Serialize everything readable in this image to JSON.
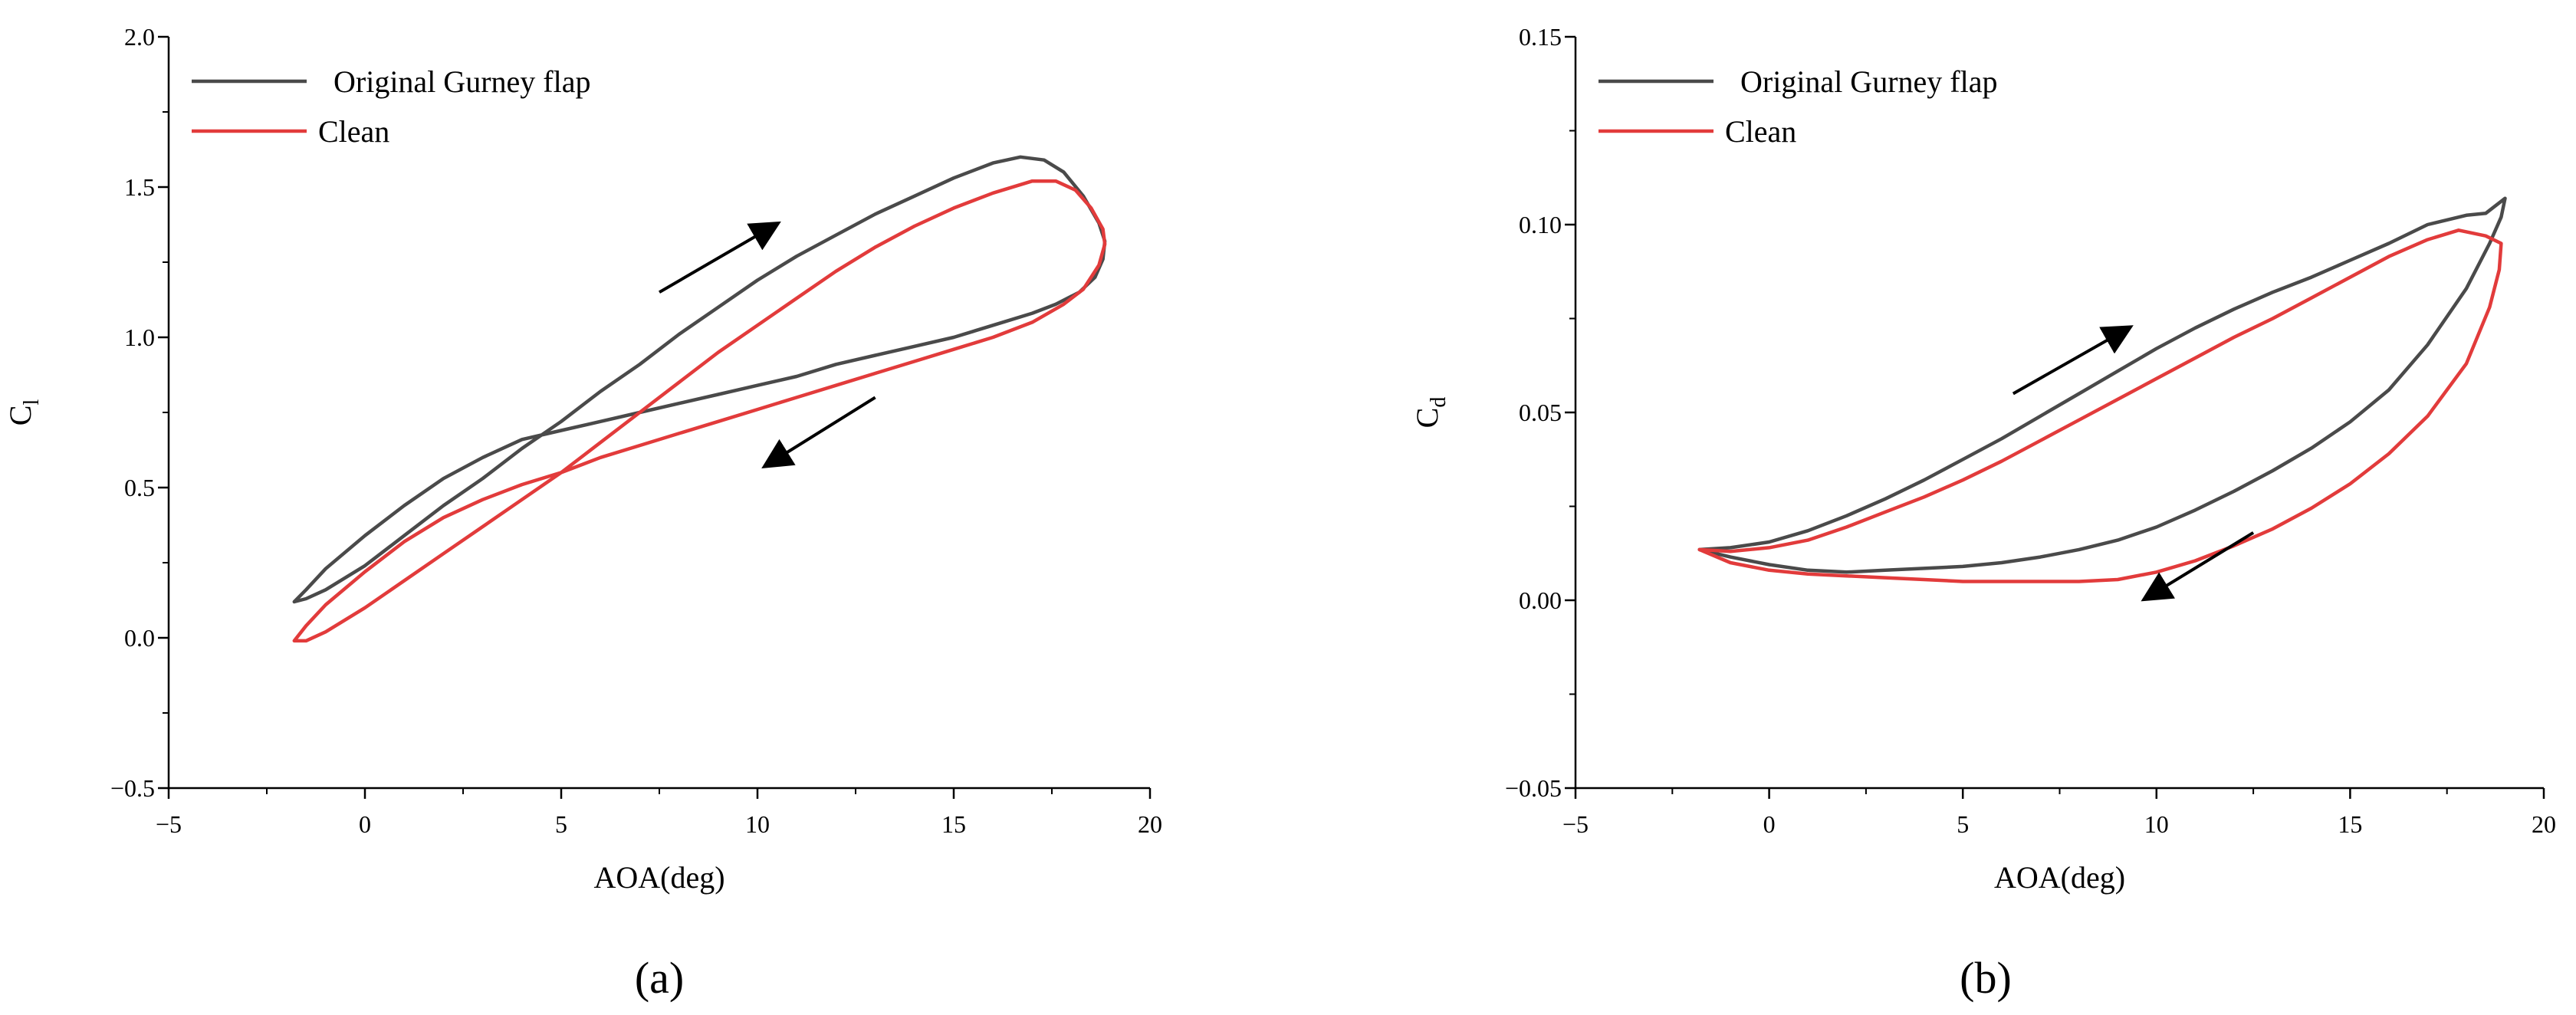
{
  "colors": {
    "gurney": "#4a4a4a",
    "clean": "#e23b3b",
    "arrow": "#000000",
    "axis": "#000000"
  },
  "chart_data": [
    {
      "type": "line",
      "panel_label": "(a)",
      "xlabel": "AOA(deg)",
      "ylabel": "C",
      "ylabel_sub": "l",
      "xlim": [
        -5,
        20
      ],
      "ylim": [
        -0.5,
        2.0
      ],
      "xticks": [
        "−5",
        "0",
        "5",
        "10",
        "15",
        "20"
      ],
      "xtick_values": [
        -5,
        0,
        5,
        10,
        15,
        20
      ],
      "yticks": [
        "−0.5",
        "0.0",
        "0.5",
        "1.0",
        "1.5",
        "2.0"
      ],
      "ytick_values": [
        -0.5,
        0.0,
        0.5,
        1.0,
        1.5,
        2.0
      ],
      "grid": false,
      "legend_position": "top-left",
      "arrows": [
        {
          "from": [
            7.5,
            1.15
          ],
          "to": [
            10.4,
            1.37
          ]
        },
        {
          "from": [
            13.0,
            0.8
          ],
          "to": [
            10.3,
            0.58
          ]
        }
      ],
      "series": [
        {
          "name": "Original Gurney flap",
          "color_key": "gurney",
          "x": [
            -1.8,
            -1.5,
            -1.0,
            0.0,
            1.0,
            2.0,
            3.0,
            4.0,
            5.0,
            6.0,
            7.0,
            8.0,
            9.0,
            10.0,
            11.0,
            12.0,
            13.0,
            14.0,
            15.0,
            16.0,
            16.7,
            17.3,
            17.8,
            18.3,
            18.7,
            18.85,
            18.8,
            18.6,
            18.2,
            17.6,
            17.0,
            16.0,
            15.0,
            14.0,
            13.0,
            12.0,
            11.0,
            10.0,
            9.0,
            8.0,
            7.0,
            6.0,
            5.0,
            4.0,
            3.0,
            2.0,
            1.0,
            0.0,
            -1.0,
            -1.5,
            -1.8
          ],
          "y": [
            0.12,
            0.13,
            0.16,
            0.24,
            0.34,
            0.44,
            0.53,
            0.63,
            0.72,
            0.82,
            0.91,
            1.01,
            1.1,
            1.19,
            1.27,
            1.34,
            1.41,
            1.47,
            1.53,
            1.58,
            1.6,
            1.59,
            1.55,
            1.47,
            1.38,
            1.32,
            1.26,
            1.2,
            1.15,
            1.11,
            1.08,
            1.04,
            1.0,
            0.97,
            0.94,
            0.91,
            0.87,
            0.84,
            0.81,
            0.78,
            0.75,
            0.72,
            0.69,
            0.66,
            0.6,
            0.53,
            0.44,
            0.34,
            0.23,
            0.16,
            0.12
          ]
        },
        {
          "name": "Clean",
          "color_key": "clean",
          "x": [
            -1.8,
            -1.5,
            -1.0,
            0.0,
            1.0,
            2.0,
            3.0,
            4.0,
            5.0,
            6.0,
            7.0,
            8.0,
            9.0,
            10.0,
            11.0,
            12.0,
            13.0,
            14.0,
            15.0,
            16.0,
            17.0,
            17.6,
            18.1,
            18.5,
            18.8,
            18.85,
            18.7,
            18.3,
            17.8,
            17.0,
            16.0,
            15.0,
            14.0,
            13.0,
            12.0,
            11.0,
            10.0,
            9.0,
            8.0,
            7.0,
            6.0,
            5.0,
            4.0,
            3.0,
            2.0,
            1.0,
            0.0,
            -1.0,
            -1.5,
            -1.8
          ],
          "y": [
            -0.01,
            -0.01,
            0.02,
            0.1,
            0.19,
            0.28,
            0.37,
            0.46,
            0.55,
            0.65,
            0.75,
            0.85,
            0.95,
            1.04,
            1.13,
            1.22,
            1.3,
            1.37,
            1.43,
            1.48,
            1.52,
            1.52,
            1.49,
            1.43,
            1.36,
            1.31,
            1.24,
            1.16,
            1.11,
            1.05,
            1.0,
            0.96,
            0.92,
            0.88,
            0.84,
            0.8,
            0.76,
            0.72,
            0.68,
            0.64,
            0.6,
            0.55,
            0.51,
            0.46,
            0.4,
            0.32,
            0.22,
            0.11,
            0.04,
            -0.01
          ]
        }
      ]
    },
    {
      "type": "line",
      "panel_label": "(b)",
      "xlabel": "AOA(deg)",
      "ylabel": "C",
      "ylabel_sub": "d",
      "xlim": [
        -5,
        20
      ],
      "ylim": [
        -0.05,
        0.15
      ],
      "xticks": [
        "−5",
        "0",
        "5",
        "10",
        "15",
        "20"
      ],
      "xtick_values": [
        -5,
        0,
        5,
        10,
        15,
        20
      ],
      "yticks": [
        "−0.05",
        "0.00",
        "0.05",
        "0.10",
        "0.15"
      ],
      "ytick_values": [
        -0.05,
        0.0,
        0.05,
        0.1,
        0.15
      ],
      "grid": false,
      "legend_position": "top-left",
      "arrows": [
        {
          "from": [
            6.3,
            0.055
          ],
          "to": [
            9.2,
            0.072
          ]
        },
        {
          "from": [
            12.5,
            0.018
          ],
          "to": [
            9.8,
            0.001
          ]
        }
      ],
      "series": [
        {
          "name": "Original Gurney flap",
          "color_key": "gurney",
          "x": [
            -1.8,
            -1.0,
            0.0,
            1.0,
            2.0,
            3.0,
            4.0,
            5.0,
            6.0,
            7.0,
            8.0,
            9.0,
            10.0,
            11.0,
            12.0,
            13.0,
            14.0,
            15.0,
            16.0,
            17.0,
            18.0,
            18.5,
            19.0,
            18.9,
            18.6,
            18.0,
            17.0,
            16.0,
            15.0,
            14.0,
            13.0,
            12.0,
            11.0,
            10.0,
            9.0,
            8.0,
            7.0,
            6.0,
            5.0,
            4.0,
            3.0,
            2.0,
            1.0,
            0.0,
            -1.0,
            -1.8
          ],
          "y": [
            0.0135,
            0.014,
            0.0155,
            0.0185,
            0.0225,
            0.027,
            0.032,
            0.0375,
            0.043,
            0.049,
            0.055,
            0.061,
            0.067,
            0.0725,
            0.0775,
            0.082,
            0.086,
            0.0905,
            0.095,
            0.1,
            0.1025,
            0.103,
            0.107,
            0.102,
            0.095,
            0.083,
            0.068,
            0.056,
            0.0475,
            0.0405,
            0.0345,
            0.029,
            0.024,
            0.0195,
            0.016,
            0.0135,
            0.0115,
            0.01,
            0.009,
            0.0085,
            0.008,
            0.0075,
            0.008,
            0.0095,
            0.0115,
            0.0135
          ]
        },
        {
          "name": "Clean",
          "color_key": "clean",
          "x": [
            -1.8,
            -1.0,
            0.0,
            1.0,
            2.0,
            3.0,
            4.0,
            5.0,
            6.0,
            7.0,
            8.0,
            9.0,
            10.0,
            11.0,
            12.0,
            13.0,
            14.0,
            15.0,
            16.0,
            17.0,
            17.8,
            18.5,
            18.9,
            18.85,
            18.6,
            18.0,
            17.0,
            16.0,
            15.0,
            14.0,
            13.0,
            12.0,
            11.0,
            10.0,
            9.0,
            8.0,
            7.0,
            6.0,
            5.0,
            4.0,
            3.0,
            2.0,
            1.0,
            0.0,
            -1.0,
            -1.8
          ],
          "y": [
            0.0135,
            0.013,
            0.014,
            0.016,
            0.0195,
            0.0235,
            0.0275,
            0.032,
            0.037,
            0.0425,
            0.048,
            0.0535,
            0.059,
            0.0645,
            0.07,
            0.075,
            0.0805,
            0.086,
            0.0915,
            0.096,
            0.0985,
            0.097,
            0.095,
            0.088,
            0.078,
            0.063,
            0.049,
            0.039,
            0.031,
            0.0245,
            0.019,
            0.0145,
            0.0105,
            0.0075,
            0.0055,
            0.005,
            0.005,
            0.005,
            0.005,
            0.0055,
            0.006,
            0.0065,
            0.007,
            0.008,
            0.01,
            0.0135
          ]
        }
      ]
    }
  ]
}
